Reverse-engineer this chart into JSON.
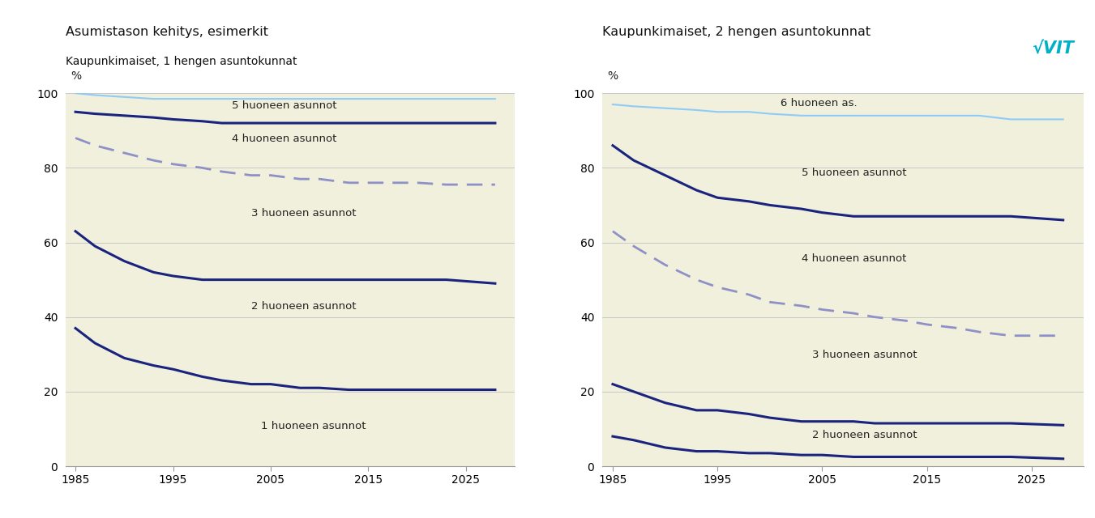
{
  "title1_line1": "Asumistason kehitys, esimerkit",
  "title1_line2": "Kaupunkimaiset, 1 hengen asuntokunnat",
  "title2": "Kaupunkimaiset, 2 hengen asuntokunnat",
  "years": [
    1985,
    1987,
    1990,
    1993,
    1995,
    1998,
    2000,
    2003,
    2005,
    2008,
    2010,
    2013,
    2015,
    2018,
    2020,
    2023,
    2028
  ],
  "chart1": {
    "1huo": [
      37,
      33,
      29,
      27,
      26,
      24,
      23,
      22,
      22,
      21,
      21,
      20.5,
      20.5,
      20.5,
      20.5,
      20.5,
      20.5
    ],
    "2huo": [
      63,
      59,
      55,
      52,
      51,
      50,
      50,
      50,
      50,
      50,
      50,
      50,
      50,
      50,
      50,
      50,
      49
    ],
    "3huo_dashed": [
      88,
      86,
      84,
      82,
      81,
      80,
      79,
      78,
      78,
      77,
      77,
      76,
      76,
      76,
      76,
      75.5,
      75.5
    ],
    "4huo": [
      95,
      94.5,
      94,
      93.5,
      93,
      92.5,
      92,
      92,
      92,
      92,
      92,
      92,
      92,
      92,
      92,
      92,
      92
    ],
    "5huo_light": [
      100,
      99.5,
      99,
      98.5,
      98.5,
      98.5,
      98.5,
      98.5,
      98.5,
      98.5,
      98.5,
      98.5,
      98.5,
      98.5,
      98.5,
      98.5,
      98.5
    ]
  },
  "chart2": {
    "2huo": [
      8,
      7,
      5,
      4,
      4,
      3.5,
      3.5,
      3,
      3,
      2.5,
      2.5,
      2.5,
      2.5,
      2.5,
      2.5,
      2.5,
      2
    ],
    "3huo": [
      22,
      20,
      17,
      15,
      15,
      14,
      13,
      12,
      12,
      12,
      11.5,
      11.5,
      11.5,
      11.5,
      11.5,
      11.5,
      11
    ],
    "4huo_dashed": [
      63,
      59,
      54,
      50,
      48,
      46,
      44,
      43,
      42,
      41,
      40,
      39,
      38,
      37,
      36,
      35,
      35
    ],
    "5huo": [
      86,
      82,
      78,
      74,
      72,
      71,
      70,
      69,
      68,
      67,
      67,
      67,
      67,
      67,
      67,
      67,
      66
    ],
    "6huo_light": [
      97,
      96.5,
      96,
      95.5,
      95,
      95,
      94.5,
      94,
      94,
      94,
      94,
      94,
      94,
      94,
      94,
      93,
      93
    ]
  },
  "bg_color": "#f0f0dc",
  "dark_navy": "#1a237e",
  "mid_navy": "#283593",
  "light_blue": "#90caf9",
  "dashed_purple": "#9090c8",
  "grid_color": "#c8c8c8",
  "label_color": "#222222",
  "vtt_color": "#00b0c8",
  "xlim": [
    1984,
    2030
  ],
  "ylim": [
    0,
    100
  ],
  "xticks": [
    1985,
    1995,
    2005,
    2015,
    2025
  ],
  "yticks": [
    0,
    20,
    40,
    60,
    80,
    100
  ]
}
